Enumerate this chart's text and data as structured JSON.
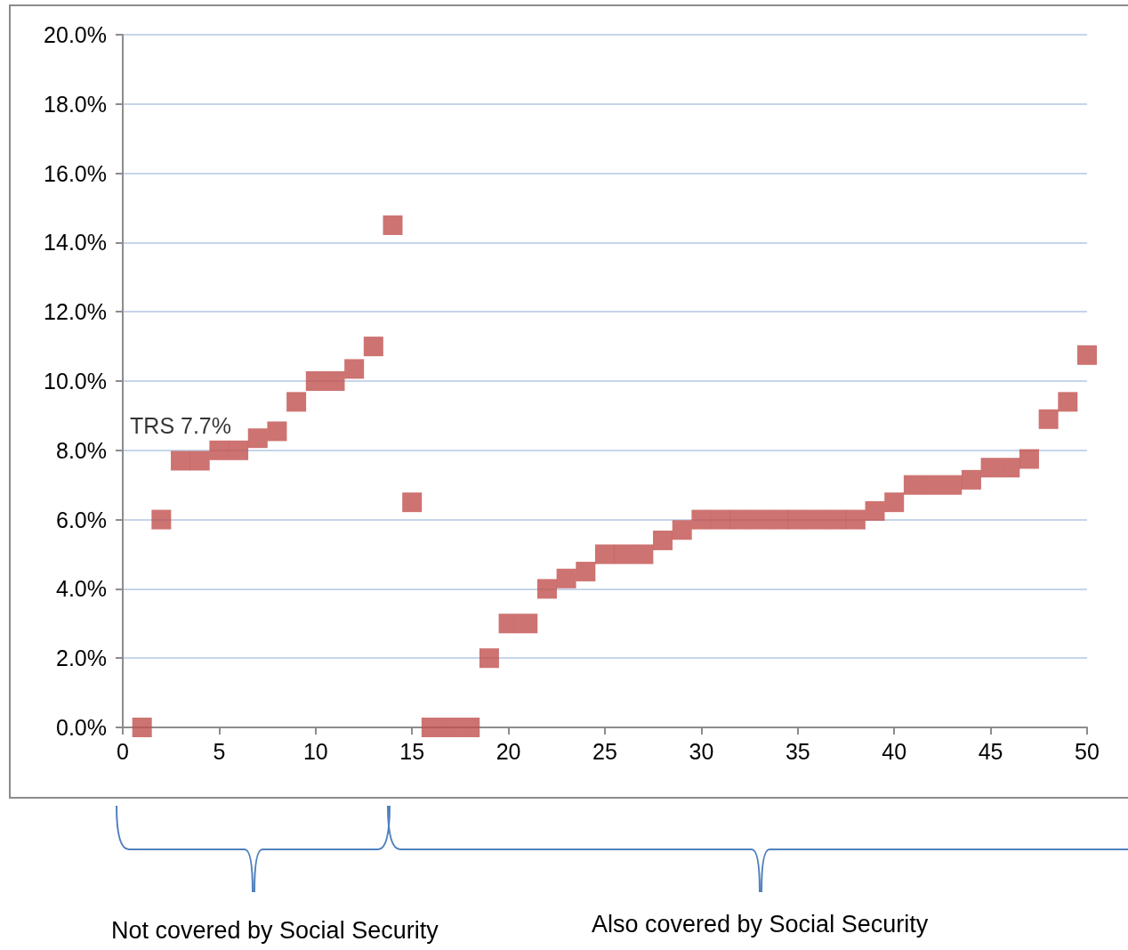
{
  "chart_data": {
    "type": "scatter",
    "x": [
      1,
      2,
      3,
      4,
      5,
      6,
      7,
      8,
      9,
      10,
      11,
      12,
      13,
      14,
      15,
      16,
      17,
      18,
      19,
      20,
      21,
      22,
      23,
      24,
      25,
      26,
      27,
      28,
      29,
      30,
      31,
      32,
      33,
      34,
      35,
      36,
      37,
      38,
      39,
      40,
      41,
      42,
      43,
      44,
      45,
      46,
      47,
      48,
      49,
      50
    ],
    "series": [
      {
        "color": "#c0504d",
        "values": [
          0,
          6.0,
          7.7,
          7.7,
          8.0,
          8.0,
          8.35,
          8.55,
          9.4,
          10.0,
          10.0,
          10.35,
          11.0,
          14.5,
          6.5,
          0,
          0,
          0,
          2.0,
          3.0,
          3.0,
          4.0,
          4.3,
          4.5,
          5.0,
          5.0,
          5.0,
          5.4,
          5.7,
          6.0,
          6.0,
          6.0,
          6.0,
          6.0,
          6.0,
          6.0,
          6.0,
          6.0,
          6.25,
          6.5,
          7.0,
          7.0,
          7.0,
          7.15,
          7.5,
          7.5,
          7.75,
          8.9,
          9.4,
          10.75
        ]
      }
    ],
    "xlim": [
      0,
      50
    ],
    "xticks": [
      0,
      5,
      10,
      15,
      20,
      25,
      30,
      35,
      40,
      45,
      50
    ],
    "ylim": [
      0,
      20
    ],
    "yticks": [
      {
        "value": 0,
        "label": "0.0%"
      },
      {
        "value": 2,
        "label": "2.0%"
      },
      {
        "value": 4,
        "label": "4.0%"
      },
      {
        "value": 6,
        "label": "6.0%"
      },
      {
        "value": 8,
        "label": "8.0%"
      },
      {
        "value": 10,
        "label": "10.0%"
      },
      {
        "value": 12,
        "label": "12.0%"
      },
      {
        "value": 14,
        "label": "14.0%"
      },
      {
        "value": 16,
        "label": "16.0%"
      },
      {
        "value": 18,
        "label": "18.0%"
      },
      {
        "value": 20,
        "label": "20.0%"
      }
    ],
    "grid": "y",
    "marker": "square",
    "annotations": [
      {
        "text": "TRS 7.7%",
        "x": 3,
        "y": 7.7
      },
      "Not covered by Social Security",
      "Also covered by Social Security"
    ]
  }
}
